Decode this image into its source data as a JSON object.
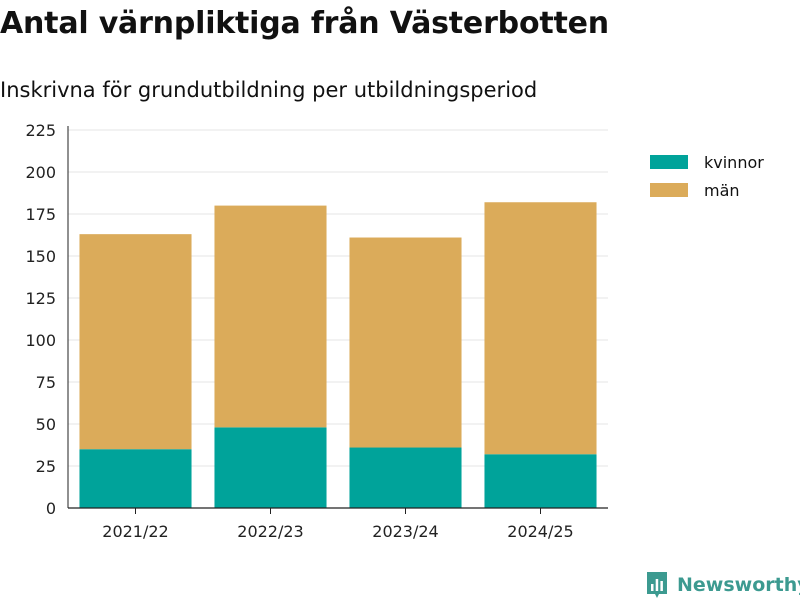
{
  "header": {
    "title": "Antal värnpliktiga från Västerbotten",
    "subtitle": "Inskrivna för grundutbildning per utbildningsperiod"
  },
  "brand": {
    "name": "Newsworthy",
    "icon": "newsworthy-logo-icon"
  },
  "colors": {
    "kvinnor": "#00a39a",
    "man": "#dbab5a",
    "grid": "#e4e4e4",
    "brand": "#3c9a90"
  },
  "chart_data": {
    "type": "bar",
    "stacked": true,
    "title": "Antal värnpliktiga från Västerbotten",
    "subtitle": "Inskrivna för grundutbildning per utbildningsperiod",
    "xlabel": "",
    "ylabel": "",
    "categories": [
      "2021/22",
      "2022/23",
      "2023/24",
      "2024/25"
    ],
    "series": [
      {
        "name": "kvinnor",
        "color": "#00a39a",
        "values": [
          35,
          48,
          36,
          32
        ]
      },
      {
        "name": "män",
        "color": "#dbab5a",
        "values": [
          128,
          132,
          125,
          150
        ]
      }
    ],
    "ylim": [
      0,
      225
    ],
    "yticks": [
      0,
      25,
      50,
      75,
      100,
      125,
      150,
      175,
      200,
      225
    ],
    "grid": true,
    "legend": "top-right"
  }
}
